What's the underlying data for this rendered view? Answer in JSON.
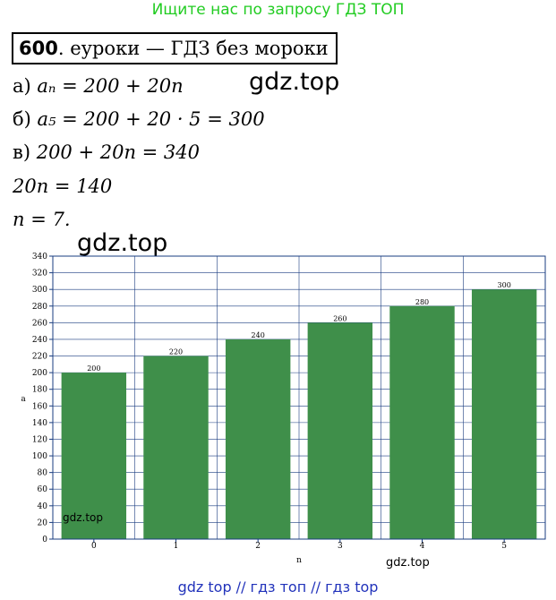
{
  "header": {
    "link_text": "Ищите нас по запросу ГДЗ ТОП"
  },
  "problem": {
    "number": "600",
    "subtitle": ". еуроки  —  ГДЗ без мороки",
    "lines": [
      {
        "label": "а) ",
        "math": "aₙ = 200 + 20n"
      },
      {
        "label": "б) ",
        "math": "a₅ = 200 + 20 · 5 = 300"
      },
      {
        "label": "в) ",
        "math": "200 + 20n = 340"
      },
      {
        "label": "",
        "math": "20n = 140"
      },
      {
        "label": "",
        "math": "n = 7."
      }
    ]
  },
  "watermarks": {
    "large_1": "gdz.top",
    "large_2": "gdz.top",
    "chart_1": "gdz.top",
    "chart_2": "gdz.top"
  },
  "chart_data": {
    "type": "bar",
    "categories": [
      "0",
      "1",
      "2",
      "3",
      "4",
      "5"
    ],
    "values": [
      200,
      220,
      240,
      260,
      280,
      300
    ],
    "data_labels": [
      "200",
      "220",
      "240",
      "260",
      "280",
      "300"
    ],
    "xlabel": "n",
    "ylabel": "a",
    "ylim": [
      0,
      340
    ],
    "yticks": [
      "0",
      "20",
      "40",
      "60",
      "80",
      "100",
      "120",
      "140",
      "160",
      "180",
      "200",
      "220",
      "240",
      "260",
      "280",
      "300",
      "320",
      "340"
    ],
    "grid": true,
    "bar_color": "#3f8f4a",
    "grid_color": "#1a3d80"
  },
  "footer": {
    "link_text": "gdz top  //  гдз топ  //  гдз top"
  }
}
